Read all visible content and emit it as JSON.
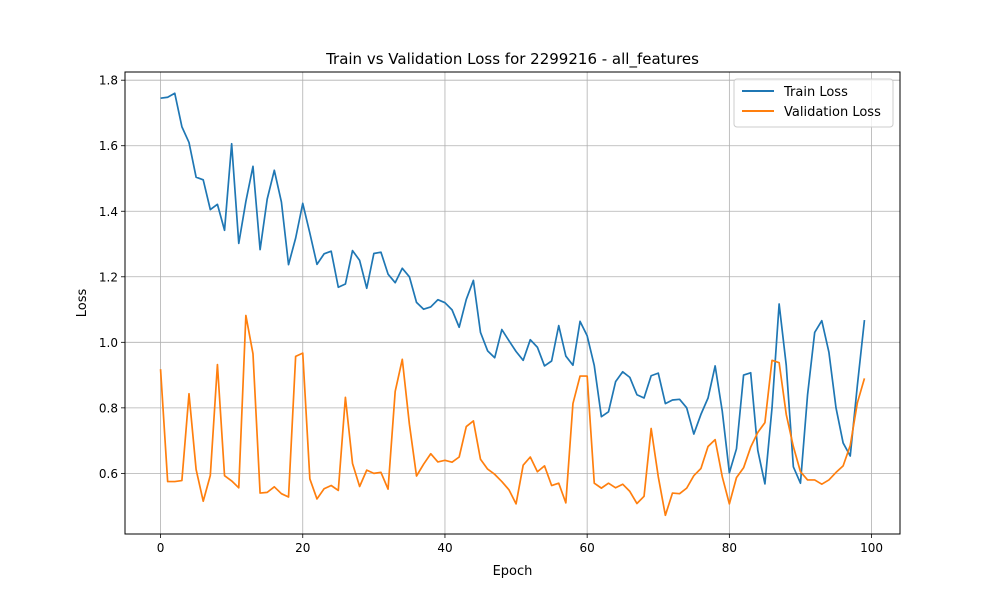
{
  "chart_data": {
    "type": "line",
    "title": "Train vs Validation Loss for 2299216 - all_features",
    "xlabel": "Epoch",
    "ylabel": "Loss",
    "xlim": [
      -5,
      104
    ],
    "ylim": [
      0.415,
      1.825
    ],
    "xticks": [
      0,
      20,
      40,
      60,
      80,
      100
    ],
    "yticks": [
      0.6,
      0.8,
      1.0,
      1.2,
      1.4,
      1.6,
      1.8
    ],
    "grid": true,
    "legend_position": "top-right",
    "series": [
      {
        "name": "Train Loss",
        "color": "#1f77b4",
        "x": [
          0,
          1,
          2,
          3,
          4,
          5,
          6,
          7,
          8,
          9,
          10,
          11,
          12,
          13,
          14,
          15,
          16,
          17,
          18,
          19,
          20,
          21,
          22,
          23,
          24,
          25,
          26,
          27,
          28,
          29,
          30,
          31,
          32,
          33,
          34,
          35,
          36,
          37,
          38,
          39,
          40,
          41,
          42,
          43,
          44,
          45,
          46,
          47,
          48,
          49,
          50,
          51,
          52,
          53,
          54,
          55,
          56,
          57,
          58,
          59,
          60,
          61,
          62,
          63,
          64,
          65,
          66,
          67,
          68,
          69,
          70,
          71,
          72,
          73,
          74,
          75,
          76,
          77,
          78,
          79,
          80,
          81,
          82,
          83,
          84,
          85,
          86,
          87,
          88,
          89,
          90,
          91,
          92,
          93,
          94,
          95,
          96,
          97,
          98,
          99
        ],
        "values": [
          1.745,
          1.748,
          1.76,
          1.658,
          1.61,
          1.504,
          1.496,
          1.405,
          1.421,
          1.342,
          1.606,
          1.302,
          1.43,
          1.537,
          1.283,
          1.437,
          1.525,
          1.428,
          1.237,
          1.318,
          1.424,
          1.333,
          1.238,
          1.27,
          1.278,
          1.168,
          1.178,
          1.28,
          1.25,
          1.165,
          1.271,
          1.275,
          1.208,
          1.182,
          1.226,
          1.2,
          1.122,
          1.101,
          1.108,
          1.13,
          1.121,
          1.099,
          1.046,
          1.131,
          1.189,
          1.03,
          0.974,
          0.953,
          1.039,
          1.005,
          0.972,
          0.945,
          1.008,
          0.985,
          0.928,
          0.943,
          1.051,
          0.958,
          0.93,
          1.064,
          1.02,
          0.929,
          0.773,
          0.788,
          0.88,
          0.91,
          0.893,
          0.84,
          0.83,
          0.898,
          0.906,
          0.813,
          0.824,
          0.826,
          0.8,
          0.72,
          0.78,
          0.83,
          0.928,
          0.79,
          0.602,
          0.675,
          0.9,
          0.907,
          0.67,
          0.568,
          0.8,
          1.117,
          0.93,
          0.62,
          0.57,
          0.84,
          1.03,
          1.066,
          0.97,
          0.8,
          0.693,
          0.653,
          0.868,
          1.068
        ]
      },
      {
        "name": "Validation Loss",
        "color": "#ff7f0e",
        "x": [
          0,
          1,
          2,
          3,
          4,
          5,
          6,
          7,
          8,
          9,
          10,
          11,
          12,
          13,
          14,
          15,
          16,
          17,
          18,
          19,
          20,
          21,
          22,
          23,
          24,
          25,
          26,
          27,
          28,
          29,
          30,
          31,
          32,
          33,
          34,
          35,
          36,
          37,
          38,
          39,
          40,
          41,
          42,
          43,
          44,
          45,
          46,
          47,
          48,
          49,
          50,
          51,
          52,
          53,
          54,
          55,
          56,
          57,
          58,
          59,
          60,
          61,
          62,
          63,
          64,
          65,
          66,
          67,
          68,
          69,
          70,
          71,
          72,
          73,
          74,
          75,
          76,
          77,
          78,
          79,
          80,
          81,
          82,
          83,
          84,
          85,
          86,
          87,
          88,
          89,
          90,
          91,
          92,
          93,
          94,
          95,
          96,
          97,
          98,
          99
        ],
        "values": [
          0.918,
          0.575,
          0.575,
          0.578,
          0.843,
          0.612,
          0.515,
          0.594,
          0.932,
          0.593,
          0.577,
          0.556,
          1.082,
          0.965,
          0.54,
          0.542,
          0.559,
          0.538,
          0.528,
          0.957,
          0.967,
          0.583,
          0.522,
          0.553,
          0.563,
          0.548,
          0.832,
          0.63,
          0.56,
          0.61,
          0.6,
          0.603,
          0.552,
          0.85,
          0.948,
          0.75,
          0.592,
          0.628,
          0.66,
          0.635,
          0.64,
          0.634,
          0.65,
          0.743,
          0.76,
          0.643,
          0.613,
          0.597,
          0.575,
          0.55,
          0.507,
          0.625,
          0.65,
          0.605,
          0.623,
          0.563,
          0.57,
          0.51,
          0.813,
          0.897,
          0.897,
          0.57,
          0.555,
          0.57,
          0.556,
          0.567,
          0.545,
          0.508,
          0.53,
          0.737,
          0.59,
          0.472,
          0.54,
          0.538,
          0.555,
          0.593,
          0.615,
          0.682,
          0.703,
          0.59,
          0.507,
          0.587,
          0.617,
          0.68,
          0.725,
          0.755,
          0.945,
          0.938,
          0.78,
          0.682,
          0.605,
          0.58,
          0.58,
          0.567,
          0.58,
          0.603,
          0.623,
          0.685,
          0.815,
          0.89
        ]
      }
    ]
  }
}
